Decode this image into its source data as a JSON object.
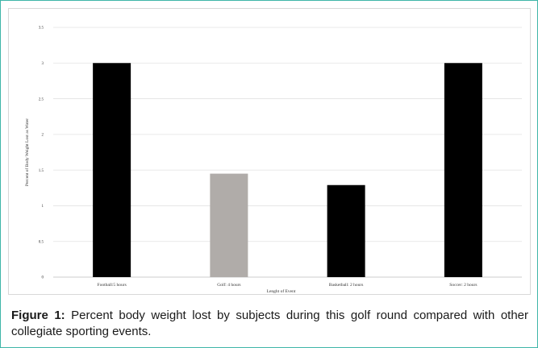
{
  "chart_data": {
    "type": "bar",
    "categories": [
      "Football:5 hours",
      "Golf: 4 hours",
      "Basketball: 2 hours",
      "Soccer: 2 hours"
    ],
    "values": [
      3.0,
      1.45,
      1.29,
      3.0
    ],
    "bar_colors": [
      "#000000",
      "#b0aca9",
      "#000000",
      "#000000"
    ],
    "xlabel": "Lenght of Event",
    "ylabel": "Percent of Body Weight Lost as Water",
    "ylim": [
      0,
      3.5
    ],
    "yticks": [
      "0",
      "0.5",
      "1",
      "1.5",
      "2",
      "2.5",
      "3",
      "3.5"
    ],
    "ytick_values": [
      0,
      0.5,
      1,
      1.5,
      2,
      2.5,
      3,
      3.5
    ],
    "grid": true,
    "legend": "none"
  },
  "caption": {
    "label": "Figure 1:",
    "text": " Percent body weight lost by subjects during this golf round compared with other collegiate sporting events."
  }
}
